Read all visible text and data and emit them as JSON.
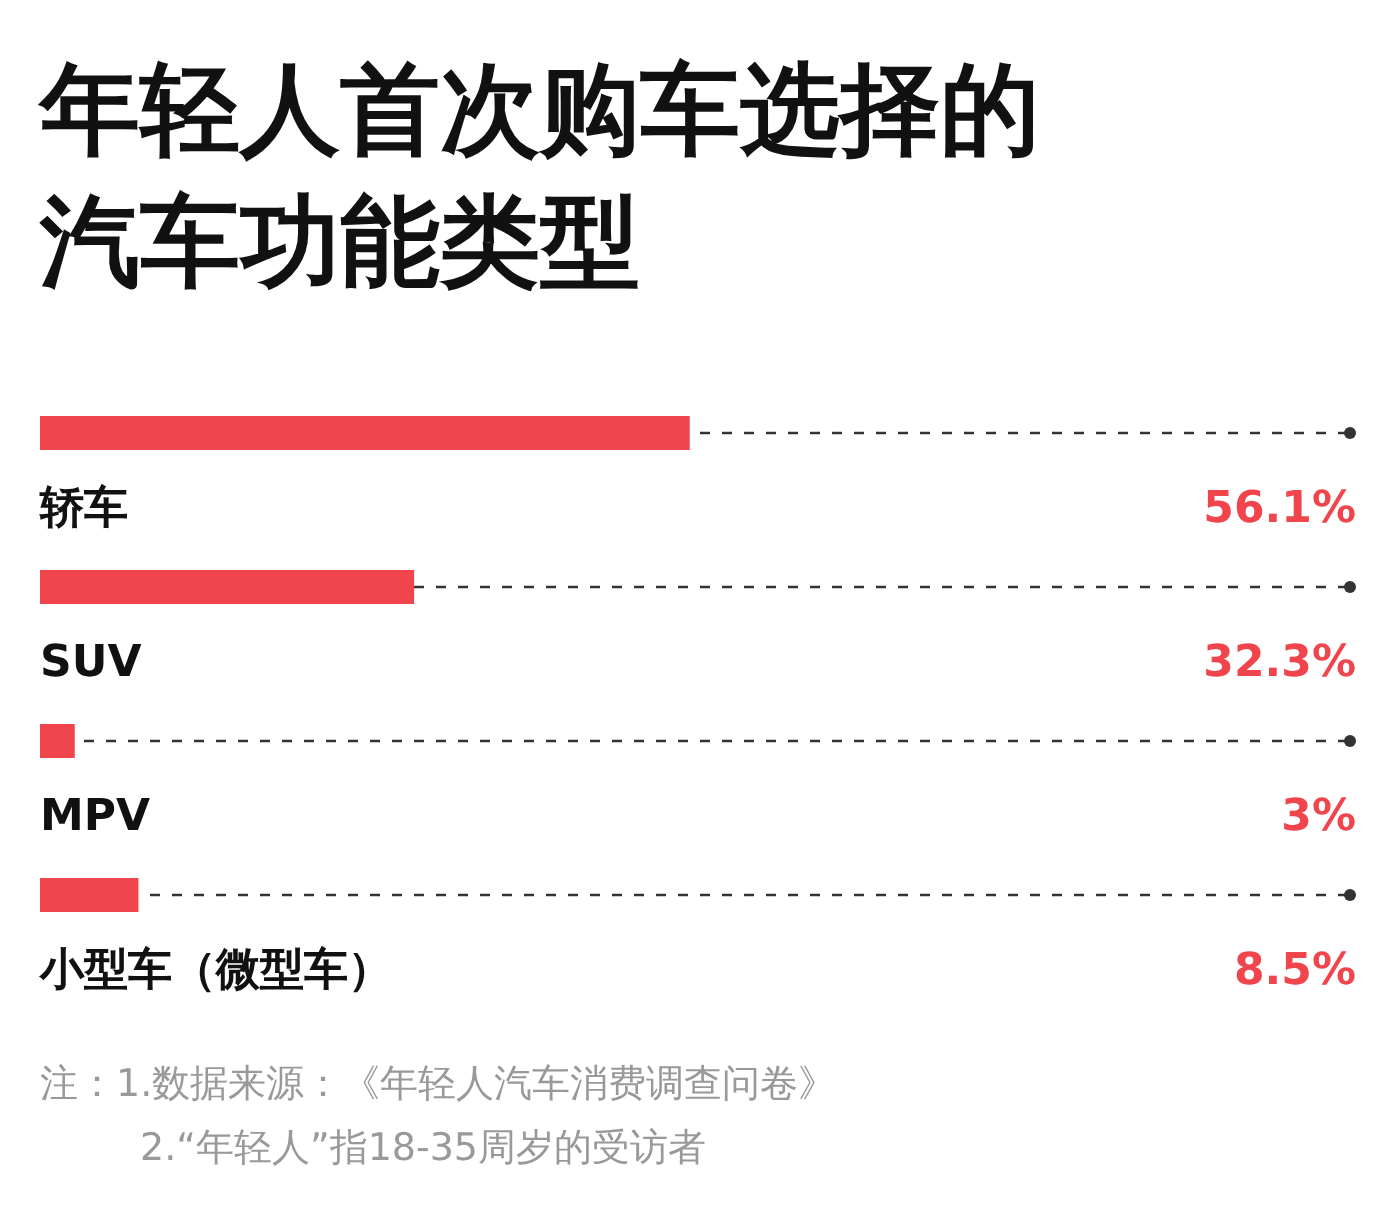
{
  "chart_data": {
    "type": "bar",
    "orientation": "horizontal",
    "title": "年轻人首次购车选择的汽车功能类型",
    "categories": [
      "轿车",
      "SUV",
      "MPV",
      "小型车（微型车）"
    ],
    "values": [
      56.1,
      32.3,
      3,
      8.5
    ],
    "value_labels": [
      "56.1%",
      "32.3%",
      "3%",
      "8.5%"
    ],
    "color": "#f0454d",
    "annotations": [
      "注：1.数据来源：《年轻人汽车消费调查问卷》",
      "2.“年轻人”指18-35周岁的受访者"
    ]
  }
}
